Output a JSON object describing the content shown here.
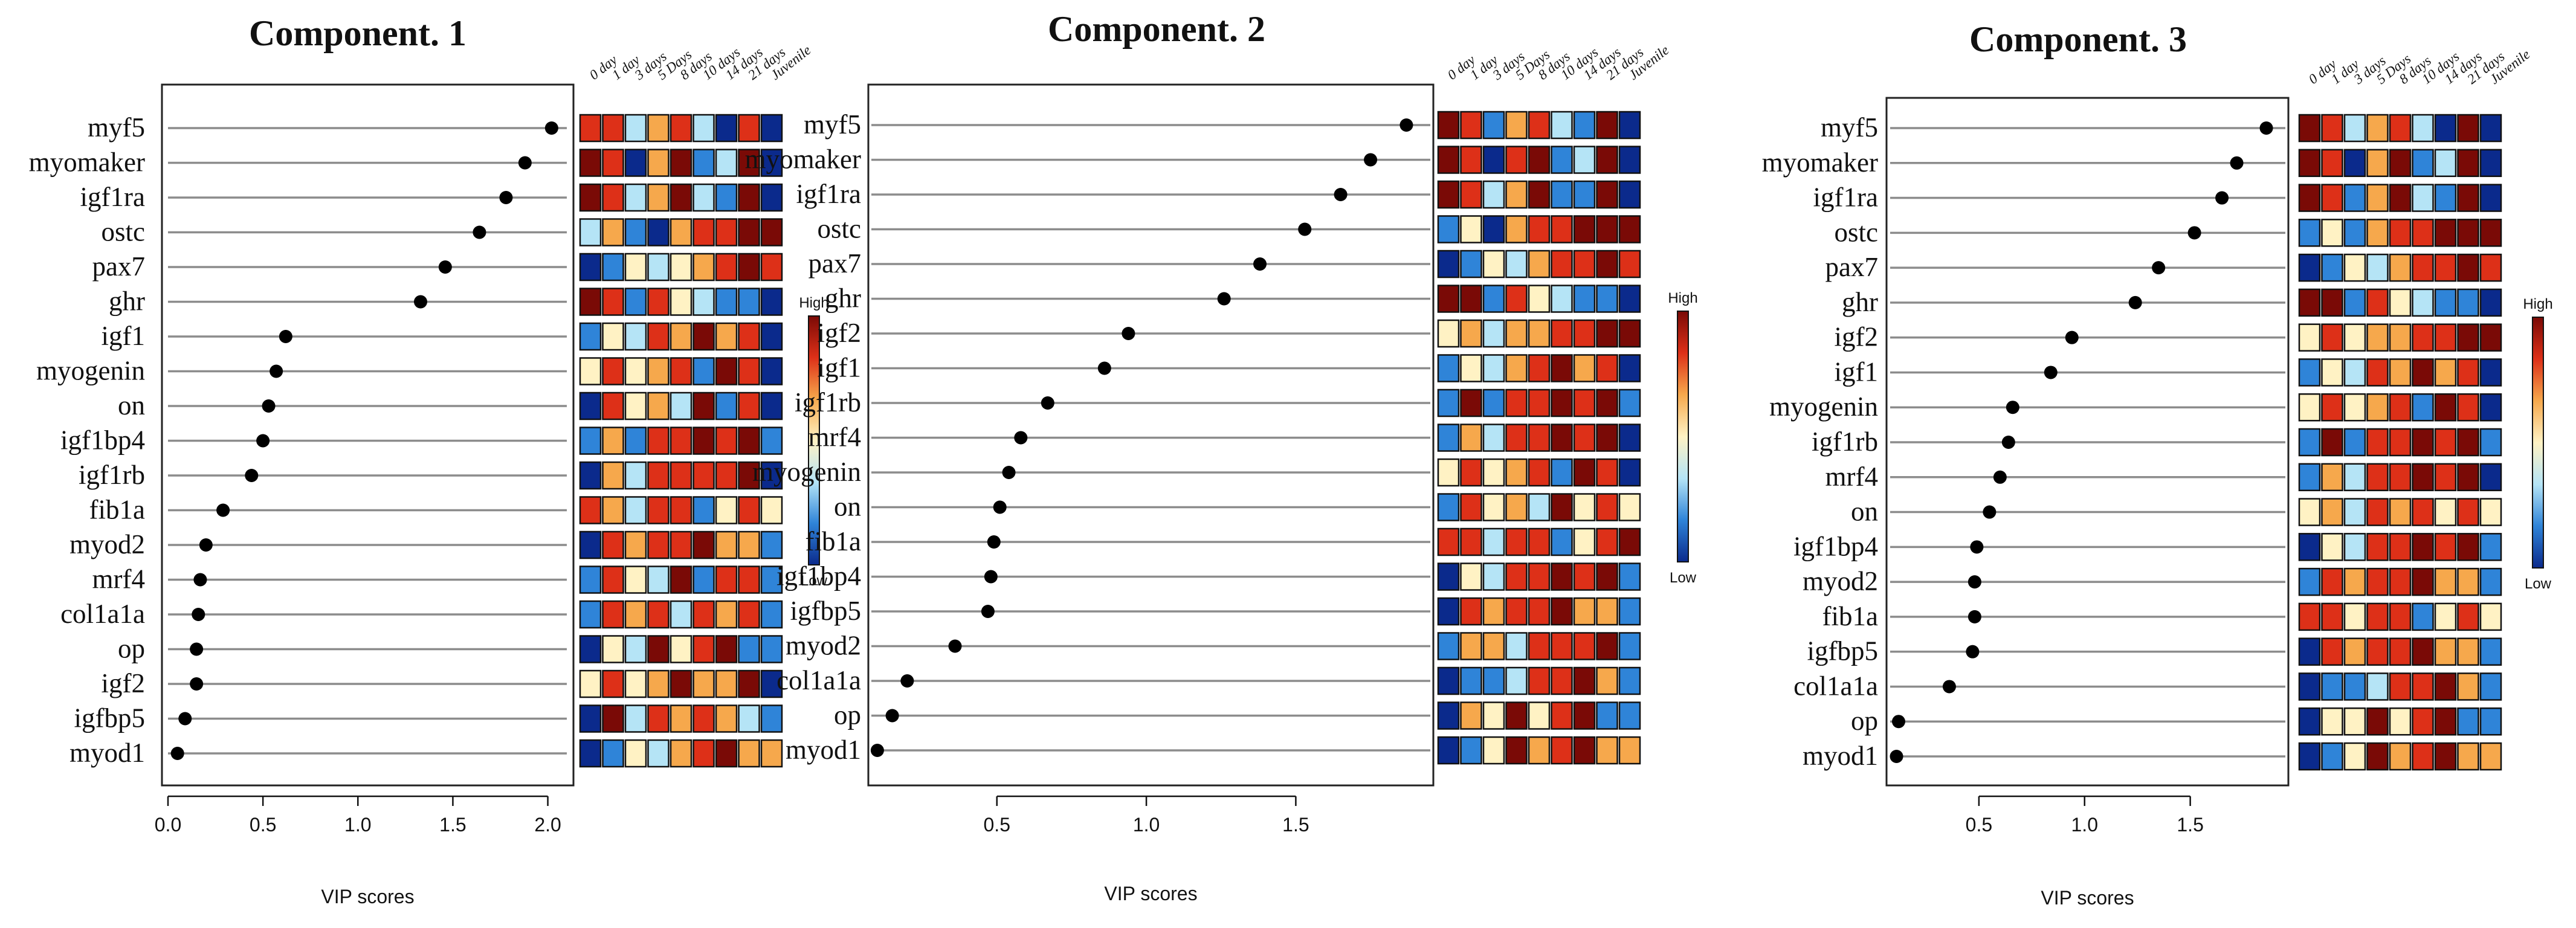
{
  "chart_data": [
    {
      "type": "scatter",
      "title": "Component. 1",
      "xlabel": "VIP scores",
      "xlim": [
        0,
        2.1
      ],
      "xticks": [
        0.0,
        0.5,
        1.0,
        1.5,
        2.0
      ],
      "xtick_labels": [
        "0.0",
        "0.5",
        "1.0",
        "1.5",
        "2.0"
      ],
      "genes": [
        "myf5",
        "myomaker",
        "igf1ra",
        "ostc",
        "pax7",
        "ghr",
        "igf1",
        "myogenin",
        "on",
        "igf1bp4",
        "igf1rb",
        "fib1a",
        "myod2",
        "mrf4",
        "col1a1a",
        "op",
        "igf2",
        "igfbp5",
        "myod1"
      ],
      "vip": [
        2.02,
        1.88,
        1.78,
        1.64,
        1.46,
        1.33,
        0.62,
        0.57,
        0.53,
        0.5,
        0.44,
        0.29,
        0.2,
        0.17,
        0.16,
        0.15,
        0.15,
        0.09,
        0.05
      ],
      "heatmap": [
        [
          5,
          5,
          2,
          4,
          5,
          2,
          0,
          5,
          0
        ],
        [
          6,
          5,
          0,
          4,
          6,
          1,
          2,
          6,
          0
        ],
        [
          6,
          5,
          2,
          4,
          6,
          2,
          1,
          6,
          0
        ],
        [
          2,
          4,
          1,
          0,
          4,
          5,
          5,
          6,
          6
        ],
        [
          0,
          1,
          3,
          2,
          3,
          4,
          5,
          6,
          5
        ],
        [
          6,
          5,
          1,
          5,
          3,
          2,
          1,
          1,
          0
        ],
        [
          1,
          3,
          2,
          5,
          4,
          6,
          4,
          5,
          0
        ],
        [
          3,
          5,
          3,
          4,
          5,
          1,
          6,
          5,
          0
        ],
        [
          0,
          5,
          3,
          4,
          2,
          6,
          1,
          5,
          0
        ],
        [
          1,
          4,
          1,
          5,
          5,
          6,
          5,
          6,
          1
        ],
        [
          0,
          4,
          2,
          5,
          5,
          5,
          5,
          6,
          0
        ],
        [
          5,
          4,
          2,
          5,
          5,
          1,
          3,
          5,
          3
        ],
        [
          0,
          5,
          4,
          5,
          5,
          6,
          4,
          4,
          1
        ],
        [
          1,
          5,
          3,
          2,
          6,
          1,
          5,
          5,
          1
        ],
        [
          1,
          5,
          4,
          5,
          2,
          5,
          4,
          5,
          1
        ],
        [
          0,
          3,
          2,
          6,
          3,
          5,
          6,
          1,
          1
        ],
        [
          3,
          5,
          3,
          4,
          6,
          4,
          4,
          6,
          0
        ],
        [
          0,
          6,
          2,
          5,
          4,
          5,
          4,
          2,
          1
        ],
        [
          0,
          1,
          3,
          2,
          4,
          5,
          6,
          4,
          4
        ]
      ]
    },
    {
      "type": "scatter",
      "title": "Component. 2",
      "xlabel": "VIP scores",
      "xlim": [
        0.08,
        1.95
      ],
      "xticks": [
        0.5,
        1.0,
        1.5
      ],
      "xtick_labels": [
        "0.5",
        "1.0",
        "1.5"
      ],
      "genes": [
        "myf5",
        "myomaker",
        "igf1ra",
        "ostc",
        "pax7",
        "ghr",
        "igf2",
        "igf1",
        "igf1rb",
        "mrf4",
        "myogenin",
        "on",
        "fib1a",
        "igf1bp4",
        "igfbp5",
        "myod2",
        "col1a1a",
        "op",
        "myod1"
      ],
      "vip": [
        1.87,
        1.75,
        1.65,
        1.53,
        1.38,
        1.26,
        0.94,
        0.86,
        0.67,
        0.58,
        0.54,
        0.51,
        0.49,
        0.48,
        0.47,
        0.36,
        0.2,
        0.15,
        0.1
      ],
      "heatmap": [
        [
          6,
          5,
          1,
          4,
          5,
          2,
          1,
          6,
          0
        ],
        [
          6,
          5,
          0,
          5,
          6,
          1,
          2,
          6,
          0
        ],
        [
          6,
          5,
          2,
          4,
          6,
          1,
          1,
          6,
          0
        ],
        [
          1,
          3,
          0,
          4,
          5,
          5,
          6,
          6,
          6
        ],
        [
          0,
          1,
          3,
          2,
          4,
          5,
          5,
          6,
          5
        ],
        [
          6,
          6,
          1,
          5,
          3,
          2,
          1,
          1,
          0
        ],
        [
          3,
          4,
          2,
          4,
          4,
          5,
          5,
          6,
          6
        ],
        [
          1,
          3,
          2,
          4,
          5,
          6,
          4,
          5,
          0
        ],
        [
          1,
          6,
          1,
          5,
          5,
          6,
          5,
          6,
          1
        ],
        [
          1,
          4,
          2,
          5,
          5,
          6,
          5,
          6,
          0
        ],
        [
          3,
          5,
          3,
          4,
          5,
          1,
          6,
          5,
          0
        ],
        [
          1,
          5,
          3,
          4,
          2,
          6,
          3,
          5,
          3
        ],
        [
          5,
          5,
          2,
          5,
          5,
          1,
          3,
          5,
          6
        ],
        [
          0,
          3,
          2,
          5,
          5,
          6,
          5,
          6,
          1
        ],
        [
          0,
          5,
          4,
          5,
          5,
          6,
          4,
          4,
          1
        ],
        [
          1,
          4,
          4,
          2,
          5,
          5,
          5,
          6,
          1
        ],
        [
          0,
          1,
          1,
          2,
          5,
          5,
          6,
          4,
          1
        ],
        [
          0,
          4,
          3,
          6,
          3,
          5,
          6,
          1,
          1
        ],
        [
          0,
          1,
          3,
          6,
          4,
          5,
          6,
          4,
          4
        ]
      ]
    },
    {
      "type": "scatter",
      "title": "Component. 3",
      "xlabel": "VIP scores",
      "xlim": [
        0.08,
        1.95
      ],
      "xticks": [
        0.5,
        1.0,
        1.5
      ],
      "xtick_labels": [
        "0.5",
        "1.0",
        "1.5"
      ],
      "genes": [
        "myf5",
        "myomaker",
        "igf1ra",
        "ostc",
        "pax7",
        "ghr",
        "igf2",
        "igf1",
        "myogenin",
        "igf1rb",
        "mrf4",
        "on",
        "igf1bp4",
        "myod2",
        "fib1a",
        "igfbp5",
        "col1a1a",
        "op",
        "myod1"
      ],
      "vip": [
        1.86,
        1.72,
        1.65,
        1.52,
        1.35,
        1.24,
        0.94,
        0.84,
        0.66,
        0.64,
        0.6,
        0.55,
        0.49,
        0.48,
        0.48,
        0.47,
        0.36,
        0.12,
        0.11
      ],
      "heatmap": [
        [
          6,
          5,
          2,
          4,
          5,
          2,
          0,
          6,
          0
        ],
        [
          6,
          5,
          0,
          4,
          6,
          1,
          2,
          6,
          0
        ],
        [
          6,
          5,
          1,
          4,
          6,
          2,
          1,
          6,
          0
        ],
        [
          1,
          3,
          1,
          4,
          5,
          5,
          6,
          6,
          6
        ],
        [
          0,
          1,
          3,
          2,
          4,
          5,
          5,
          6,
          5
        ],
        [
          6,
          6,
          1,
          5,
          3,
          2,
          1,
          1,
          0
        ],
        [
          3,
          5,
          3,
          4,
          4,
          5,
          5,
          6,
          6
        ],
        [
          1,
          3,
          2,
          5,
          4,
          6,
          4,
          5,
          0
        ],
        [
          3,
          5,
          3,
          4,
          5,
          1,
          6,
          5,
          0
        ],
        [
          1,
          6,
          1,
          5,
          5,
          6,
          5,
          6,
          1
        ],
        [
          1,
          4,
          2,
          5,
          5,
          6,
          5,
          6,
          0
        ],
        [
          3,
          4,
          2,
          5,
          4,
          5,
          3,
          5,
          3
        ],
        [
          0,
          3,
          2,
          5,
          5,
          6,
          5,
          6,
          1
        ],
        [
          1,
          5,
          4,
          5,
          5,
          6,
          4,
          4,
          1
        ],
        [
          5,
          5,
          3,
          5,
          5,
          1,
          3,
          5,
          3
        ],
        [
          0,
          5,
          4,
          5,
          5,
          6,
          4,
          4,
          1
        ],
        [
          0,
          1,
          1,
          2,
          5,
          5,
          6,
          4,
          1
        ],
        [
          0,
          3,
          3,
          6,
          3,
          5,
          6,
          1,
          1
        ],
        [
          0,
          1,
          3,
          6,
          4,
          5,
          6,
          4,
          4
        ]
      ]
    }
  ],
  "columns": [
    "0 day",
    "1 day",
    "3 days",
    "5 Days",
    "8 days",
    "10 days",
    "14 days",
    "21 days",
    "Juvenile"
  ],
  "legend": {
    "high": "High",
    "low": "Low"
  },
  "heat_colors": [
    "#0b2a8c",
    "#2f84d8",
    "#b5e4f6",
    "#fff2c4",
    "#f6a84c",
    "#dd3018",
    "#7a0a06"
  ],
  "colors": {
    "lollipop": "#8c8c8c",
    "dot": "#000000",
    "frame": "#222222"
  }
}
